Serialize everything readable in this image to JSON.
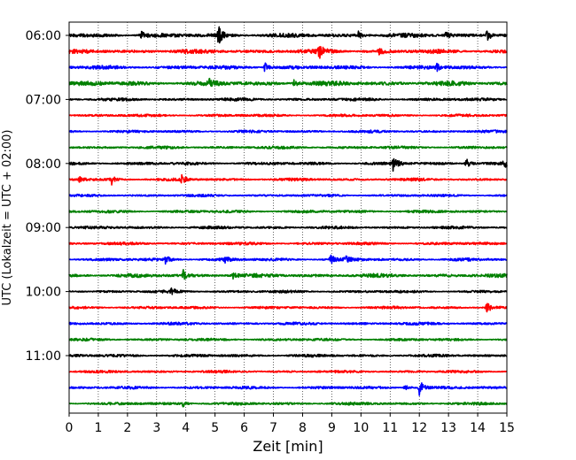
{
  "chart_data": {
    "type": "line",
    "title": "",
    "xlabel": "Zeit  [min]",
    "ylabel": "UTC (Lokalzeit = UTC + 02:00)",
    "xlim": [
      0,
      15
    ],
    "x_ticks": [
      "0",
      "1",
      "2",
      "3",
      "4",
      "5",
      "6",
      "7",
      "8",
      "9",
      "10",
      "11",
      "12",
      "13",
      "14",
      "15"
    ],
    "y_ticks": [
      "06:00",
      "07:00",
      "08:00",
      "09:00",
      "10:00",
      "11:00"
    ],
    "trace_interval_min": 15,
    "vertical_grid": "dotted",
    "trace_colors": [
      "#000000",
      "#ff0000",
      "#0000ff",
      "#008000"
    ],
    "traces": [
      {
        "start": "06:00",
        "color": "#000000",
        "amp": 0.22,
        "events": [
          {
            "t": 2.45,
            "a": 0.7
          },
          {
            "t": 5.1,
            "a": 1.25
          },
          {
            "t": 9.9,
            "a": 0.55
          },
          {
            "t": 12.9,
            "a": 0.4
          },
          {
            "t": 14.3,
            "a": 0.8
          }
        ]
      },
      {
        "start": "06:15",
        "color": "#ff0000",
        "amp": 0.22,
        "events": [
          {
            "t": 8.55,
            "a": 1.1
          },
          {
            "t": 10.6,
            "a": 0.45
          }
        ]
      },
      {
        "start": "06:30",
        "color": "#0000ff",
        "amp": 0.2,
        "events": [
          {
            "t": 6.7,
            "a": 0.6
          },
          {
            "t": 12.6,
            "a": 0.4
          }
        ]
      },
      {
        "start": "06:45",
        "color": "#008000",
        "amp": 0.25,
        "events": [
          {
            "t": 4.8,
            "a": 0.55
          },
          {
            "t": 7.7,
            "a": 0.45
          }
        ]
      },
      {
        "start": "07:00",
        "color": "#000000",
        "amp": 0.16,
        "events": []
      },
      {
        "start": "07:15",
        "color": "#ff0000",
        "amp": 0.14,
        "events": []
      },
      {
        "start": "07:30",
        "color": "#0000ff",
        "amp": 0.14,
        "events": []
      },
      {
        "start": "07:45",
        "color": "#008000",
        "amp": 0.15,
        "events": []
      },
      {
        "start": "08:00",
        "color": "#000000",
        "amp": 0.16,
        "events": [
          {
            "t": 11.1,
            "a": 1.2
          },
          {
            "t": 13.6,
            "a": 0.75
          },
          {
            "t": 14.9,
            "a": 0.55
          }
        ]
      },
      {
        "start": "08:15",
        "color": "#ff0000",
        "amp": 0.15,
        "events": [
          {
            "t": 1.45,
            "a": 0.65
          },
          {
            "t": 3.85,
            "a": 0.55
          },
          {
            "t": 0.35,
            "a": 0.35
          }
        ]
      },
      {
        "start": "08:30",
        "color": "#0000ff",
        "amp": 0.13,
        "events": []
      },
      {
        "start": "08:45",
        "color": "#008000",
        "amp": 0.15,
        "events": []
      },
      {
        "start": "09:00",
        "color": "#000000",
        "amp": 0.15,
        "events": []
      },
      {
        "start": "09:15",
        "color": "#ff0000",
        "amp": 0.15,
        "events": []
      },
      {
        "start": "09:30",
        "color": "#0000ff",
        "amp": 0.16,
        "events": [
          {
            "t": 3.3,
            "a": 0.45
          },
          {
            "t": 5.3,
            "a": 0.4
          },
          {
            "t": 8.95,
            "a": 0.6
          },
          {
            "t": 9.45,
            "a": 0.5
          }
        ]
      },
      {
        "start": "09:45",
        "color": "#008000",
        "amp": 0.2,
        "events": [
          {
            "t": 3.9,
            "a": 0.7
          },
          {
            "t": 5.6,
            "a": 0.4
          }
        ]
      },
      {
        "start": "10:00",
        "color": "#000000",
        "amp": 0.14,
        "events": [
          {
            "t": 3.5,
            "a": 0.4
          }
        ]
      },
      {
        "start": "10:15",
        "color": "#ff0000",
        "amp": 0.14,
        "events": [
          {
            "t": 14.3,
            "a": 0.7
          }
        ]
      },
      {
        "start": "10:30",
        "color": "#0000ff",
        "amp": 0.15,
        "events": []
      },
      {
        "start": "10:45",
        "color": "#008000",
        "amp": 0.14,
        "events": []
      },
      {
        "start": "11:00",
        "color": "#000000",
        "amp": 0.15,
        "events": []
      },
      {
        "start": "11:15",
        "color": "#ff0000",
        "amp": 0.14,
        "events": []
      },
      {
        "start": "11:30",
        "color": "#0000ff",
        "amp": 0.15,
        "events": [
          {
            "t": 12.0,
            "a": 1.0
          },
          {
            "t": 11.5,
            "a": 0.45
          }
        ]
      },
      {
        "start": "11:45",
        "color": "#008000",
        "amp": 0.15,
        "events": [
          {
            "t": 3.9,
            "a": 0.4
          }
        ]
      }
    ]
  }
}
